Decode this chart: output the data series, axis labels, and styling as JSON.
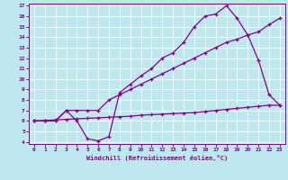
{
  "xlabel": "Windchill (Refroidissement éolien,°C)",
  "bg_color": "#bde8ee",
  "line_color": "#880088",
  "xlim": [
    -0.5,
    23.5
  ],
  "ylim": [
    3.8,
    17.2
  ],
  "xticks": [
    0,
    1,
    2,
    3,
    4,
    5,
    6,
    7,
    8,
    9,
    10,
    11,
    12,
    13,
    14,
    15,
    16,
    17,
    18,
    19,
    20,
    21,
    22,
    23
  ],
  "yticks": [
    4,
    5,
    6,
    7,
    8,
    9,
    10,
    11,
    12,
    13,
    14,
    15,
    16,
    17
  ],
  "line_dip_x": [
    0,
    1,
    2,
    3,
    4,
    5,
    6,
    7,
    8,
    9,
    10,
    11,
    12,
    13,
    14,
    15,
    16,
    17,
    18,
    19,
    20,
    21,
    22,
    23
  ],
  "line_dip_y": [
    6,
    6,
    6,
    7,
    6,
    4.3,
    4.1,
    4.5,
    8.7,
    9.5,
    10.3,
    11.0,
    12.0,
    12.5,
    13.5,
    15.0,
    16.0,
    16.2,
    17.0,
    15.8,
    14.2,
    11.8,
    8.5,
    7.5
  ],
  "line_mid_x": [
    0,
    1,
    2,
    3,
    4,
    5,
    6,
    7,
    8,
    9,
    10,
    11,
    12,
    13,
    14,
    15,
    16,
    17,
    18,
    19,
    20,
    21,
    22,
    23
  ],
  "line_mid_y": [
    6,
    6,
    6,
    7,
    7,
    7,
    7,
    8.0,
    8.5,
    9.0,
    9.5,
    10.0,
    10.5,
    11.0,
    11.5,
    12.0,
    12.5,
    13.0,
    13.5,
    13.8,
    14.2,
    14.5,
    15.2,
    15.8
  ],
  "line_flat_x": [
    0,
    1,
    2,
    3,
    4,
    5,
    6,
    7,
    8,
    9,
    10,
    11,
    12,
    13,
    14,
    15,
    16,
    17,
    18,
    19,
    20,
    21,
    22,
    23
  ],
  "line_flat_y": [
    6,
    6.05,
    6.1,
    6.15,
    6.2,
    6.25,
    6.3,
    6.35,
    6.4,
    6.45,
    6.55,
    6.6,
    6.65,
    6.7,
    6.75,
    6.8,
    6.9,
    7.0,
    7.1,
    7.2,
    7.3,
    7.4,
    7.5,
    7.5
  ]
}
